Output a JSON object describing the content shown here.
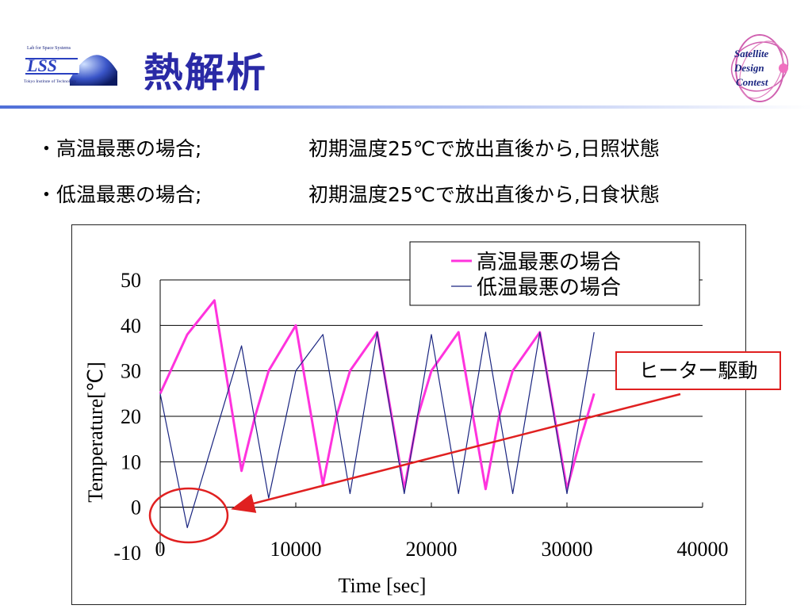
{
  "header": {
    "title": "熱解析",
    "lss_logo": {
      "top_text": "Lab for Space Systems",
      "mark": "LSS",
      "bottom_text": "Tokyo Institute of Technology"
    },
    "sdc_logo": {
      "lines": [
        "Satellite",
        "Design",
        "Contest"
      ]
    },
    "accent_color": "#2a2aa6"
  },
  "bullets": [
    {
      "marker": "・",
      "label": "高温最悪の場合;",
      "detail": "初期温度25℃で放出直後から,日照状態"
    },
    {
      "marker": "・",
      "label": "低温最悪の場合;",
      "detail": "初期温度25℃で放出直後から,日食状態"
    }
  ],
  "callout": {
    "text": "ヒーター駆動",
    "color": "#e02020"
  },
  "chart_data": {
    "type": "line",
    "xlabel": "Time [sec]",
    "ylabel": "Temperature[℃]",
    "xlim": [
      0,
      40000
    ],
    "ylim": [
      -10,
      50
    ],
    "x_ticks": [
      "0",
      "10000",
      "20000",
      "30000",
      "40000"
    ],
    "y_ticks": [
      "50",
      "40",
      "30",
      "20",
      "10",
      "0",
      "-10"
    ],
    "grid": "horizontal",
    "legend_position": "top-right",
    "series": [
      {
        "name": "高温最悪の場合",
        "color": "#ff33dd",
        "x": [
          0,
          2000,
          4000,
          6000,
          7000,
          8000,
          10000,
          12000,
          13000,
          14000,
          16000,
          18000,
          19000,
          20000,
          22000,
          24000,
          25000,
          26000,
          28000,
          30000,
          31000,
          32000
        ],
        "y": [
          25,
          38,
          45.5,
          8,
          20,
          30,
          40,
          5,
          20,
          30,
          38.5,
          4,
          20,
          30,
          38.5,
          4,
          20,
          30,
          38.5,
          4,
          15,
          25
        ]
      },
      {
        "name": "低温最悪の場合",
        "color": "#1a2580",
        "x": [
          0,
          2000,
          6000,
          8000,
          10000,
          12000,
          14000,
          16000,
          18000,
          20000,
          22000,
          24000,
          26000,
          28000,
          30000,
          32000
        ],
        "y": [
          25,
          -4.5,
          35.5,
          2,
          30,
          38,
          3,
          38.5,
          3,
          38,
          3,
          38.5,
          3,
          38.5,
          3,
          38.5
        ]
      }
    ]
  }
}
